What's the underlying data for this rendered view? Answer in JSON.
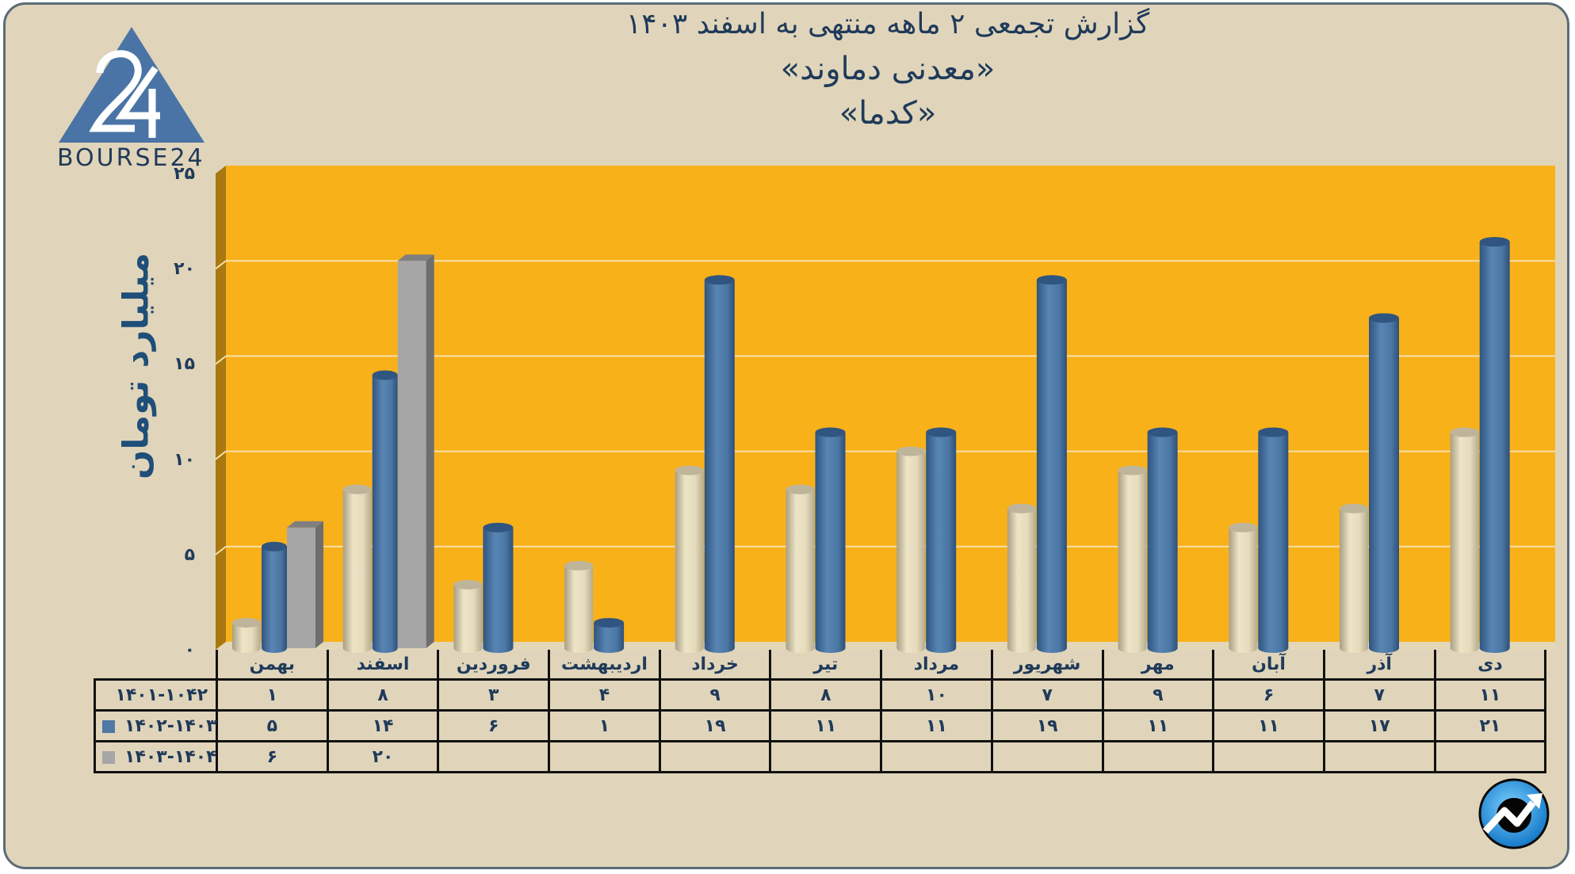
{
  "title": {
    "line1": "گزارش تجمعی ۲ ماهه منتهی به اسفند ۱۴۰۳",
    "line2": "«معدنی دماوند»",
    "line3": "«کدما»"
  },
  "logo": {
    "brand_text": "BOURSE24",
    "mark_text": "24"
  },
  "colors": {
    "background": "#E0D5BA",
    "plot_bg": "#F9B11A",
    "plot_wall": "#A97810",
    "series1": "#E8DFC0",
    "series2": "#4E78A6",
    "series3": "#A6A6A6",
    "text": "#1F3A5A",
    "gridline": "#F6DFA8"
  },
  "chart_data": {
    "type": "bar",
    "title": "گزارش تجمعی ۲ ماهه منتهی به اسفند ۱۴۰۳ «معدنی دماوند» «کدما»",
    "xlabel": "",
    "ylabel": "میلیارد تومان",
    "ylim": [
      0,
      25
    ],
    "yticks": [
      0,
      5,
      10,
      15,
      20,
      25
    ],
    "ytick_labels": [
      "۰",
      "۵",
      "۱۰",
      "۱۵",
      "۲۰",
      "۲۵"
    ],
    "grid": true,
    "legend_position": "data-table",
    "categories": [
      "بهمن",
      "اسفند",
      "فروردین",
      "اردیبهشت",
      "خرداد",
      "تیر",
      "مرداد",
      "شهریور",
      "مهر",
      "آبان",
      "آذر",
      "دی"
    ],
    "series": [
      {
        "name": "۱۴۰۱-۱۰۴۲",
        "values": [
          1,
          8,
          3,
          4,
          9,
          8,
          10,
          7,
          9,
          6,
          7,
          11
        ],
        "labels": [
          "۱",
          "۸",
          "۳",
          "۴",
          "۹",
          "۸",
          "۱۰",
          "۷",
          "۹",
          "۶",
          "۷",
          "۱۱"
        ],
        "shape": "cylinder"
      },
      {
        "name": "۱۴۰۲-۱۴۰۳",
        "values": [
          5,
          14,
          6,
          1,
          19,
          11,
          11,
          19,
          11,
          11,
          17,
          21
        ],
        "labels": [
          "۵",
          "۱۴",
          "۶",
          "۱",
          "۱۹",
          "۱۱",
          "۱۱",
          "۱۹",
          "۱۱",
          "۱۱",
          "۱۷",
          "۲۱"
        ],
        "shape": "cylinder"
      },
      {
        "name": "۱۴۰۳-۱۴۰۴",
        "values": [
          6,
          20,
          null,
          null,
          null,
          null,
          null,
          null,
          null,
          null,
          null,
          null
        ],
        "labels": [
          "۶",
          "۲۰",
          "",
          "",
          "",
          "",
          "",
          "",
          "",
          "",
          "",
          ""
        ],
        "shape": "box"
      }
    ]
  }
}
